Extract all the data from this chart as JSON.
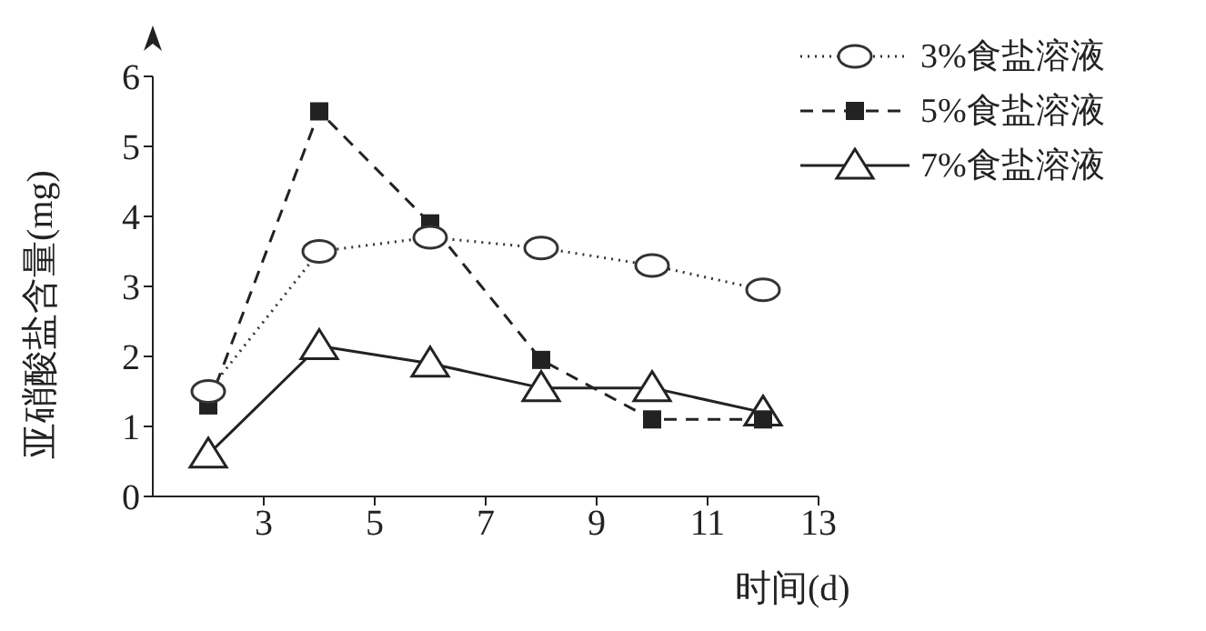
{
  "chart_data": {
    "type": "line",
    "xlabel": "时间(d)",
    "ylabel": "亚硝酸盐含量(mg)",
    "x": [
      2,
      4,
      6,
      8,
      10,
      12
    ],
    "series": [
      {
        "name": "3%食盐溶液",
        "color": "#333333",
        "values": [
          1.5,
          3.5,
          3.7,
          3.55,
          3.3,
          2.95
        ],
        "marker": "circle",
        "line_style": "dotted"
      },
      {
        "name": "5%食盐溶液",
        "color": "#222222",
        "values": [
          1.3,
          5.5,
          3.9,
          1.95,
          1.1,
          1.1
        ],
        "marker": "square",
        "line_style": "dashed"
      },
      {
        "name": "7%食盐溶液",
        "color": "#222222",
        "values": [
          0.6,
          2.15,
          1.9,
          1.55,
          1.55,
          1.2
        ],
        "marker": "triangle",
        "line_style": "solid"
      }
    ],
    "xlim": [
      1,
      13
    ],
    "xticks": [
      3,
      5,
      7,
      9,
      11,
      13
    ],
    "ylim": [
      0,
      6
    ],
    "yticks": [
      0,
      1,
      2,
      3,
      4,
      5,
      6
    ],
    "grid": false,
    "legend": "top right"
  }
}
